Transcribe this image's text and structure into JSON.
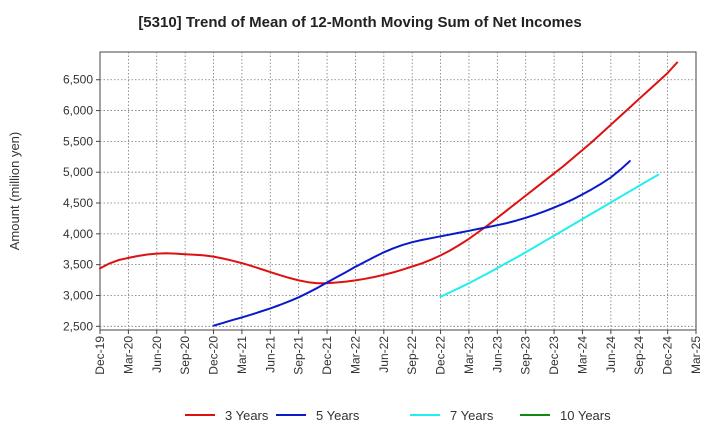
{
  "chart_data": {
    "type": "line",
    "title": "[5310]  Trend of Mean of 12-Month Moving Sum of Net Incomes",
    "xlabel": "",
    "ylabel": "Amount (million yen)",
    "x_tick_labels": [
      "Dec-19",
      "Mar-20",
      "Jun-20",
      "Sep-20",
      "Dec-20",
      "Mar-21",
      "Jun-21",
      "Sep-21",
      "Dec-21",
      "Mar-22",
      "Jun-22",
      "Sep-22",
      "Dec-22",
      "Mar-23",
      "Jun-23",
      "Sep-23",
      "Dec-23",
      "Mar-24",
      "Jun-24",
      "Sep-24",
      "Dec-24",
      "Mar-25"
    ],
    "y_ticks": [
      2500,
      3000,
      3500,
      4000,
      4500,
      5000,
      5500,
      6000,
      6500
    ],
    "y_tick_labels": [
      "2,500",
      "3,000",
      "3,500",
      "4,000",
      "4,500",
      "5,000",
      "5,500",
      "6,000",
      "6,500"
    ],
    "ylim": [
      2440,
      6950
    ],
    "grid": true,
    "legend_position": "bottom",
    "series": [
      {
        "name": "3 Years",
        "color": "#dd1111",
        "start_index": 0,
        "values": [
          3440,
          3520,
          3575,
          3610,
          3640,
          3665,
          3680,
          3685,
          3680,
          3670,
          3660,
          3650,
          3630,
          3600,
          3565,
          3525,
          3480,
          3430,
          3380,
          3330,
          3285,
          3245,
          3215,
          3200,
          3200,
          3210,
          3225,
          3245,
          3270,
          3300,
          3335,
          3375,
          3420,
          3470,
          3520,
          3580,
          3650,
          3730,
          3820,
          3920,
          4030,
          4140,
          4260,
          4380,
          4500,
          4620,
          4740,
          4860,
          4980,
          5100,
          5230,
          5360,
          5490,
          5630,
          5770,
          5910,
          6050,
          6190,
          6330,
          6470,
          6610,
          6780
        ]
      },
      {
        "name": "5 Years",
        "color": "#0a1aca",
        "start_index": 12,
        "values": [
          2510,
          2555,
          2600,
          2645,
          2690,
          2740,
          2790,
          2845,
          2905,
          2970,
          3045,
          3125,
          3210,
          3295,
          3380,
          3465,
          3545,
          3625,
          3700,
          3765,
          3820,
          3865,
          3900,
          3930,
          3960,
          3990,
          4020,
          4050,
          4080,
          4110,
          4140,
          4175,
          4215,
          4260,
          4310,
          4365,
          4425,
          4490,
          4560,
          4640,
          4725,
          4815,
          4915,
          5040,
          5180
        ]
      },
      {
        "name": "7 Years",
        "color": "#22eeee",
        "start_index": 36,
        "values": [
          2980,
          3050,
          3125,
          3200,
          3280,
          3360,
          3445,
          3530,
          3615,
          3700,
          3790,
          3880,
          3970,
          4060,
          4150,
          4240,
          4330,
          4420,
          4510,
          4600,
          4690,
          4780,
          4870,
          4960
        ]
      },
      {
        "name": "10 Years",
        "color": "#118811",
        "start_index": 0,
        "values": []
      }
    ]
  }
}
